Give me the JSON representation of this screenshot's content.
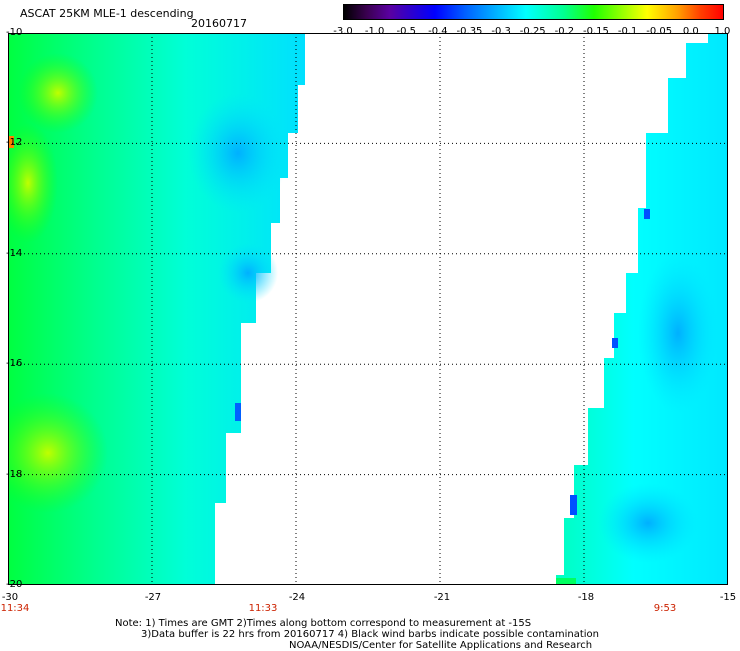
{
  "header": {
    "title": "ASCAT 25KM MLE-1 descending",
    "date": "20160717"
  },
  "colorbar": {
    "labels": [
      "-3.0",
      "-1.0",
      "-0.5",
      "-0.4",
      "-0.35",
      "-0.3",
      "-0.25",
      "-0.2",
      "-0.15",
      "-0.1",
      "-0.05",
      "0.0",
      "1.0"
    ]
  },
  "axes": {
    "y_ticks": [
      "-10",
      "-12",
      "-14",
      "-16",
      "-18",
      "-20"
    ],
    "x_ticks": [
      "-30",
      "-27",
      "-24",
      "-21",
      "-18",
      "-15"
    ]
  },
  "times": [
    "11:34",
    "11:33",
    "9:53"
  ],
  "notes": {
    "line1": "Note: 1) Times are GMT 2)Times along bottom correspond to measurement at -15S",
    "line2": "3)Data buffer is 22 hrs from 20160717 4) Black wind barbs indicate possible contamination",
    "line3": "NOAA/NESDIS/Center for Satellite Applications and Research"
  },
  "colors": {
    "cyan": "#00ffff",
    "green": "#00ff00",
    "blue": "#00aaff",
    "time_label": "#cc2200"
  }
}
